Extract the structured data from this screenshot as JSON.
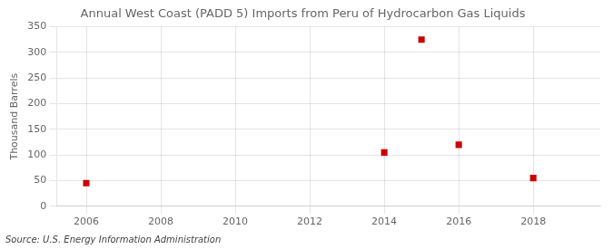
{
  "chart_data": {
    "type": "scatter",
    "title": "Annual West Coast (PADD 5) Imports from Peru of Hydrocarbon Gas Liquids",
    "ylabel": "Thousand Barrels",
    "annotation": "Source: U.S. Energy Information Administration",
    "x": [
      2006,
      2014,
      2015,
      2016,
      2018
    ],
    "values": [
      45,
      105,
      325,
      120,
      55
    ],
    "color": "#cc0000",
    "marker": "square",
    "xlim": [
      2005.2,
      2019.8
    ],
    "ylim": [
      0,
      350
    ],
    "xticks": [
      2006,
      2008,
      2010,
      2012,
      2014,
      2016,
      2018
    ],
    "yticks": [
      0,
      50,
      100,
      150,
      200,
      250,
      300,
      350
    ],
    "grid": true
  }
}
